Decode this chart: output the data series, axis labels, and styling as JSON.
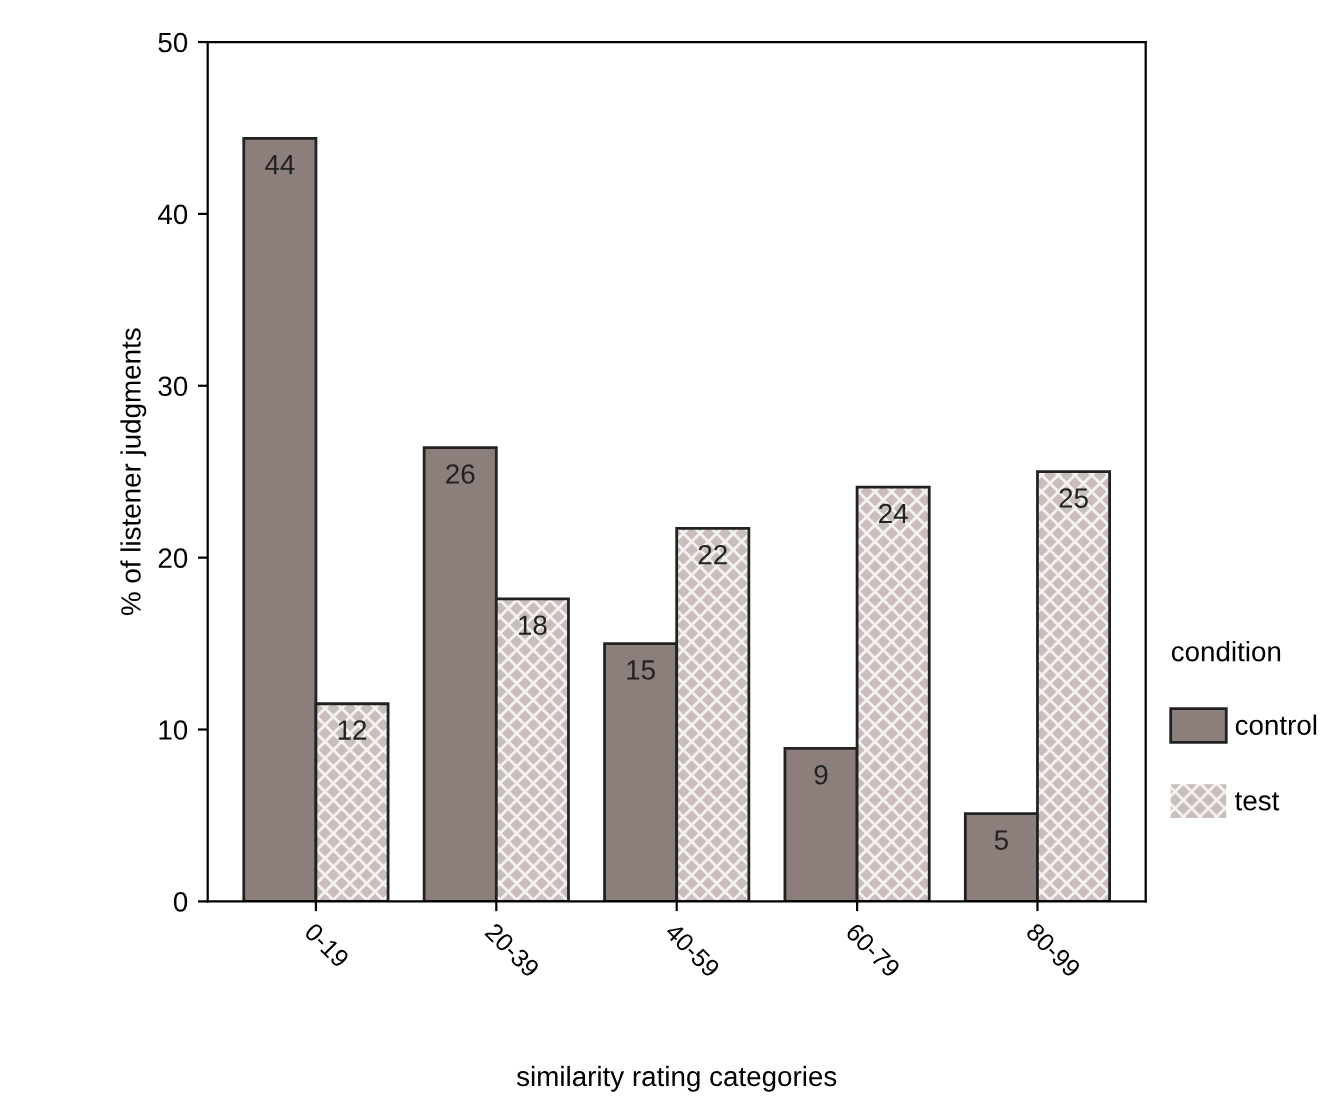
{
  "chart_data": {
    "type": "bar",
    "xlabel": "similarity rating categories",
    "ylabel": "% of listener judgments",
    "legend_title": "condition",
    "legend": "right",
    "categories": [
      "0-19",
      "20-39",
      "40-59",
      "60-79",
      "80-99"
    ],
    "series": [
      {
        "name": "control",
        "color": "#8c7f7b",
        "values": [
          44.4,
          26.4,
          15.0,
          8.9,
          5.1
        ],
        "value_labels": [
          "44",
          "26",
          "15",
          "9",
          "5"
        ]
      },
      {
        "name": "test",
        "color": "#c9bebb",
        "values": [
          11.5,
          17.6,
          21.7,
          24.1,
          25.0
        ],
        "value_labels": [
          "12",
          "18",
          "22",
          "24",
          "25"
        ]
      }
    ],
    "ylim": [
      0,
      50
    ],
    "yticks": [
      0,
      10,
      20,
      30,
      40,
      50
    ],
    "grid": false
  }
}
